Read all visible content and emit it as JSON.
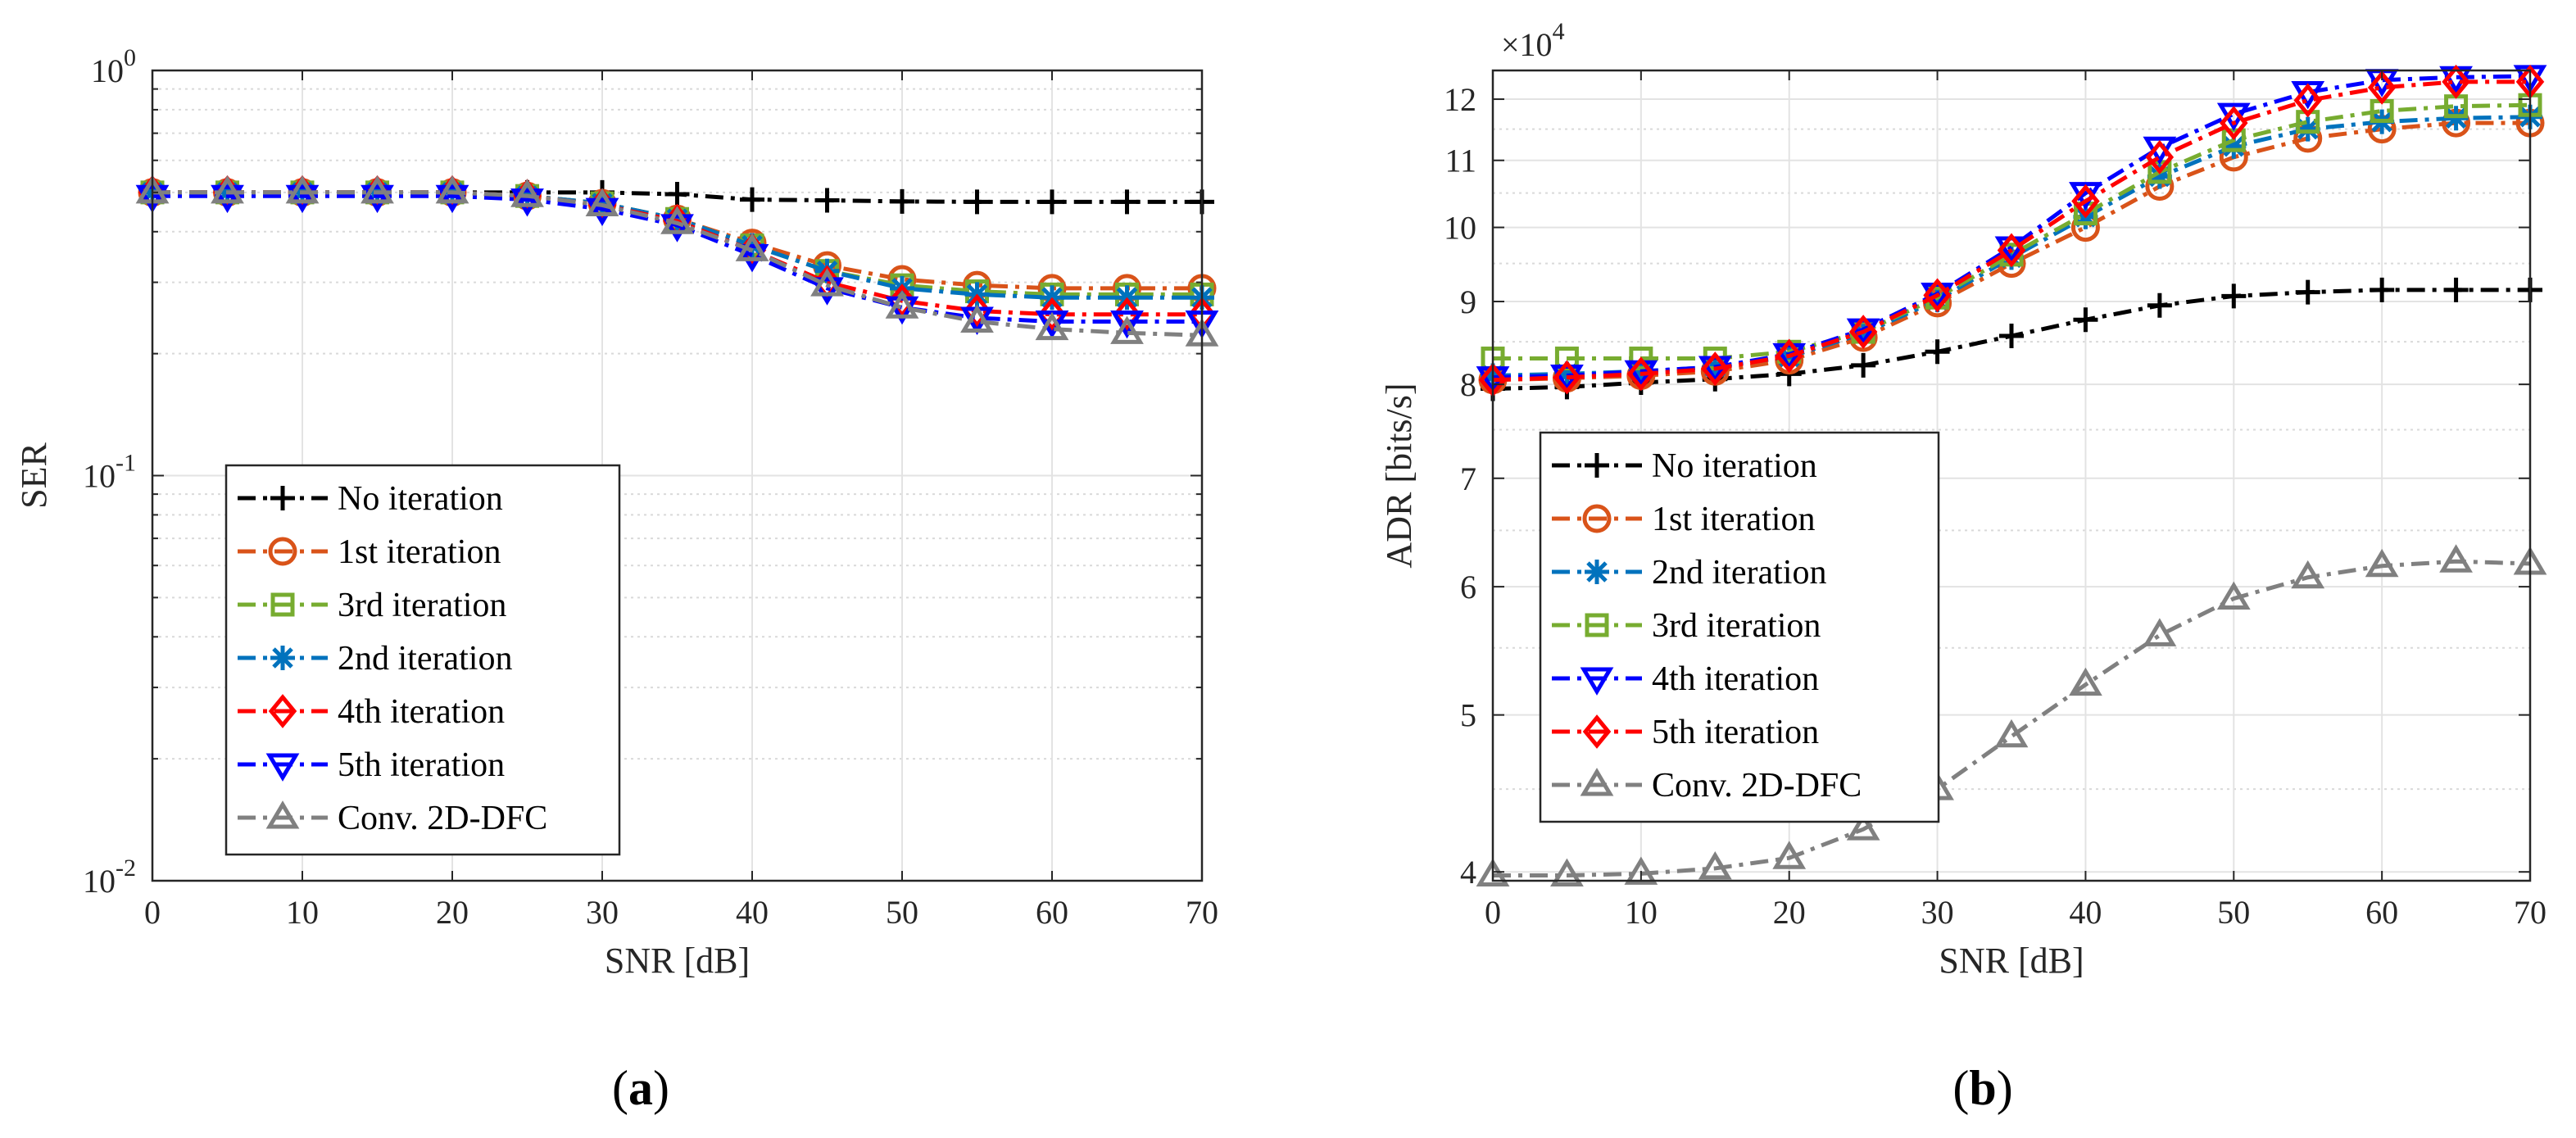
{
  "chart_data": [
    {
      "type": "line",
      "yscale": "log",
      "title": "",
      "xlabel": "SNR [dB]",
      "ylabel": "SER",
      "xlim": [
        0,
        70
      ],
      "ylim": [
        0.01,
        1
      ],
      "grid": true,
      "minor_grid": true,
      "legend_position": "bottom-left",
      "caption_open": "(",
      "caption_letter": "a",
      "caption_close": ")",
      "x": [
        0,
        5,
        10,
        15,
        20,
        25,
        30,
        35,
        40,
        45,
        50,
        55,
        60,
        65,
        70
      ],
      "xtick_labels": [
        "0",
        "10",
        "20",
        "30",
        "40",
        "50",
        "60",
        "70"
      ],
      "ytick_labels": [
        {
          "base": "10",
          "exp": "0"
        },
        {
          "base": "10",
          "exp": "-1"
        },
        {
          "base": "10",
          "exp": "-2"
        }
      ],
      "series": [
        {
          "name": "No iteration",
          "color": "#000000",
          "marker": "plus",
          "values": [
            0.5,
            0.5,
            0.5,
            0.5,
            0.5,
            0.5,
            0.5,
            0.495,
            0.48,
            0.478,
            0.475,
            0.474,
            0.474,
            0.474,
            0.474
          ]
        },
        {
          "name": "1st iteration",
          "color": "#D95319",
          "marker": "circle",
          "values": [
            0.5,
            0.5,
            0.5,
            0.5,
            0.5,
            0.49,
            0.47,
            0.43,
            0.375,
            0.33,
            0.305,
            0.295,
            0.29,
            0.29,
            0.29
          ]
        },
        {
          "name": "3rd iteration",
          "color": "#77AC30",
          "marker": "square",
          "values": [
            0.5,
            0.5,
            0.5,
            0.5,
            0.5,
            0.49,
            0.47,
            0.43,
            0.37,
            0.32,
            0.295,
            0.285,
            0.28,
            0.28,
            0.28
          ]
        },
        {
          "name": "2nd iteration",
          "color": "#0072BD",
          "marker": "asterisk",
          "values": [
            0.5,
            0.5,
            0.5,
            0.5,
            0.5,
            0.49,
            0.47,
            0.43,
            0.37,
            0.32,
            0.29,
            0.28,
            0.275,
            0.275,
            0.275
          ]
        },
        {
          "name": "4th iteration",
          "color": "#FF0000",
          "marker": "diamond",
          "values": [
            0.5,
            0.5,
            0.5,
            0.5,
            0.5,
            0.49,
            0.465,
            0.425,
            0.36,
            0.3,
            0.27,
            0.255,
            0.25,
            0.25,
            0.25
          ]
        },
        {
          "name": "5th iteration",
          "color": "#0000FF",
          "marker": "triangle-down",
          "values": [
            0.49,
            0.49,
            0.49,
            0.49,
            0.49,
            0.48,
            0.455,
            0.415,
            0.35,
            0.29,
            0.26,
            0.245,
            0.24,
            0.24,
            0.24
          ]
        },
        {
          "name": "Conv. 2D-DFC",
          "color": "#808080",
          "marker": "triangle-up",
          "values": [
            0.5,
            0.5,
            0.5,
            0.5,
            0.5,
            0.49,
            0.465,
            0.42,
            0.36,
            0.295,
            0.26,
            0.24,
            0.23,
            0.225,
            0.222
          ]
        }
      ]
    },
    {
      "type": "line",
      "yscale": "log",
      "title": "",
      "xlabel": "SNR [dB]",
      "ylabel": "ADR [bits/s]",
      "y_multiplier": {
        "base": "×10",
        "exp": "4"
      },
      "xlim": [
        0,
        70
      ],
      "ylim": [
        3.95,
        12.5
      ],
      "grid": true,
      "minor_grid": true,
      "legend_position": "middle-left",
      "caption_open": "(",
      "caption_letter": "b",
      "caption_close": ")",
      "x": [
        0,
        5,
        10,
        15,
        20,
        25,
        30,
        35,
        40,
        45,
        50,
        55,
        60,
        65,
        70
      ],
      "xtick_labels": [
        "0",
        "10",
        "20",
        "30",
        "40",
        "50",
        "60",
        "70"
      ],
      "ytick_values": [
        4,
        5,
        6,
        7,
        8,
        9,
        10,
        11,
        12
      ],
      "ytick_labels": [
        "4",
        "5",
        "6",
        "7",
        "8",
        "9",
        "10",
        "11",
        "12"
      ],
      "series": [
        {
          "name": "No iteration",
          "color": "#000000",
          "marker": "plus",
          "values": [
            7.95,
            7.97,
            8.02,
            8.06,
            8.12,
            8.22,
            8.38,
            8.57,
            8.77,
            8.95,
            9.07,
            9.12,
            9.15,
            9.15,
            9.15
          ]
        },
        {
          "name": "1st iteration",
          "color": "#D95319",
          "marker": "circle",
          "values": [
            8.05,
            8.07,
            8.1,
            8.15,
            8.28,
            8.55,
            8.98,
            9.5,
            10.0,
            10.6,
            11.05,
            11.35,
            11.5,
            11.6,
            11.6
          ]
        },
        {
          "name": "2nd iteration",
          "color": "#0072BD",
          "marker": "asterisk",
          "values": [
            8.1,
            8.12,
            8.15,
            8.2,
            8.32,
            8.6,
            9.02,
            9.58,
            10.15,
            10.75,
            11.22,
            11.5,
            11.62,
            11.68,
            11.7
          ]
        },
        {
          "name": "3rd iteration",
          "color": "#77AC30",
          "marker": "square",
          "values": [
            8.3,
            8.3,
            8.3,
            8.3,
            8.38,
            8.62,
            9.05,
            9.62,
            10.2,
            10.82,
            11.32,
            11.62,
            11.8,
            11.88,
            11.9
          ]
        },
        {
          "name": "4th iteration",
          "color": "#0000FF",
          "marker": "triangle-down",
          "values": [
            8.08,
            8.1,
            8.15,
            8.2,
            8.35,
            8.65,
            9.1,
            9.72,
            10.5,
            11.2,
            11.75,
            12.12,
            12.33,
            12.38,
            12.4
          ]
        },
        {
          "name": "5th iteration",
          "color": "#FF0000",
          "marker": "diamond",
          "values": [
            8.05,
            8.08,
            8.12,
            8.18,
            8.33,
            8.62,
            9.08,
            9.68,
            10.38,
            11.05,
            11.6,
            11.98,
            12.2,
            12.3,
            12.3
          ]
        },
        {
          "name": "Conv. 2D-DFC",
          "color": "#808080",
          "marker": "triangle-up",
          "values": [
            3.98,
            3.98,
            3.99,
            4.02,
            4.08,
            4.25,
            4.5,
            4.85,
            5.22,
            5.6,
            5.9,
            6.08,
            6.18,
            6.22,
            6.2
          ]
        }
      ]
    }
  ]
}
